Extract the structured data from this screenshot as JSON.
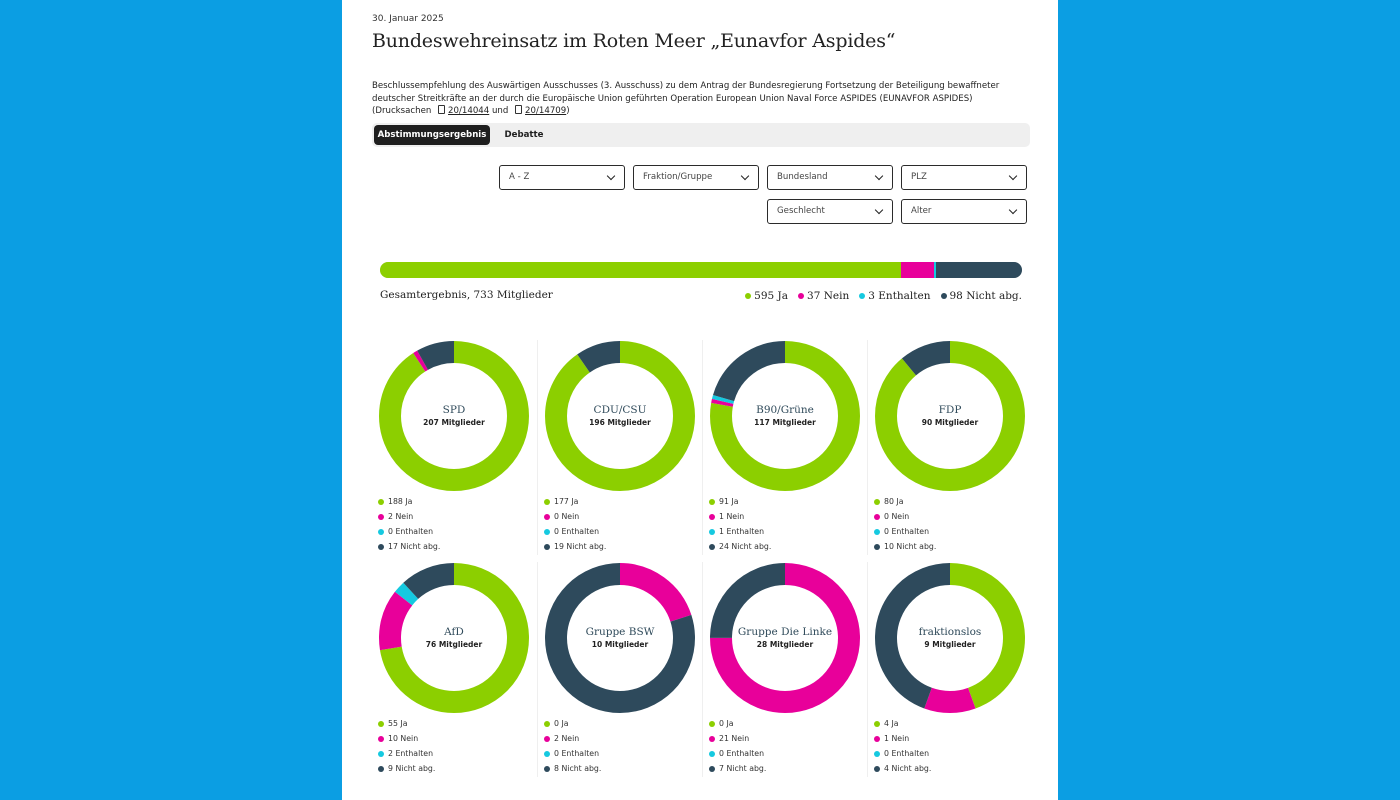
{
  "date": "30. Januar 2025",
  "title": "Bundeswehreinsatz im Roten Meer „Eunavfor Aspides“",
  "description": {
    "text": "Beschlussempfehlung des Auswärtigen Ausschusses (3. Ausschuss) zu dem Antrag der Bundesregierung Fortsetzung der Beteiligung bewaffneter deutscher Streitkräfte an der durch die Europäische Union geführten Operation European Union Naval Force ASPIDES (EUNAVFOR ASPIDES) (Drucksachen",
    "link1": "20/14044",
    "and": "und",
    "link2": "20/14709",
    "close": ")"
  },
  "tabs": [
    {
      "label": "Abstimmungsergebnis",
      "active": true
    },
    {
      "label": "Debatte",
      "active": false
    }
  ],
  "filters": {
    "sort": "A - Z",
    "fraktion": "Fraktion/Gruppe",
    "bundesland": "Bundesland",
    "plz": "PLZ",
    "geschlecht": "Geschlecht",
    "alter": "Alter"
  },
  "colors": {
    "ja": "#8ccf00",
    "nein": "#e8009a",
    "enthalten": "#15c9e0",
    "nicht": "#2e4a5c"
  },
  "total": {
    "label": "Gesamtergebnis, 733 Mitglieder",
    "ja": 595,
    "nein": 37,
    "enthalten": 3,
    "nicht": 98,
    "legend": [
      "595 Ja",
      "37 Nein",
      "3 Enthalten",
      "98 Nicht abg."
    ]
  },
  "chart_data": {
    "type": "pie",
    "categories": [
      "Ja",
      "Nein",
      "Enthalten",
      "Nicht abg."
    ],
    "groups": [
      {
        "name": "SPD",
        "members": "207 Mitglieder",
        "values": [
          188,
          2,
          0,
          17
        ],
        "labels": [
          "188 Ja",
          "2 Nein",
          "0 Enthalten",
          "17 Nicht abg."
        ]
      },
      {
        "name": "CDU/CSU",
        "members": "196 Mitglieder",
        "values": [
          177,
          0,
          0,
          19
        ],
        "labels": [
          "177 Ja",
          "0 Nein",
          "0 Enthalten",
          "19 Nicht abg."
        ]
      },
      {
        "name": "B90/Grüne",
        "members": "117 Mitglieder",
        "values": [
          91,
          1,
          1,
          24
        ],
        "labels": [
          "91 Ja",
          "1 Nein",
          "1 Enthalten",
          "24 Nicht abg."
        ]
      },
      {
        "name": "FDP",
        "members": "90 Mitglieder",
        "values": [
          80,
          0,
          0,
          10
        ],
        "labels": [
          "80 Ja",
          "0 Nein",
          "0 Enthalten",
          "10 Nicht abg."
        ]
      },
      {
        "name": "AfD",
        "members": "76 Mitglieder",
        "values": [
          55,
          10,
          2,
          9
        ],
        "labels": [
          "55 Ja",
          "10 Nein",
          "2 Enthalten",
          "9 Nicht abg."
        ]
      },
      {
        "name": "Gruppe BSW",
        "members": "10 Mitglieder",
        "values": [
          0,
          2,
          0,
          8
        ],
        "labels": [
          "0 Ja",
          "2 Nein",
          "0 Enthalten",
          "8 Nicht abg."
        ]
      },
      {
        "name": "Gruppe Die Linke",
        "members": "28 Mitglieder",
        "values": [
          0,
          21,
          0,
          7
        ],
        "labels": [
          "0 Ja",
          "21 Nein",
          "0 Enthalten",
          "7 Nicht abg."
        ]
      },
      {
        "name": "fraktionslos",
        "members": "9 Mitglieder",
        "values": [
          4,
          1,
          0,
          4
        ],
        "labels": [
          "4 Ja",
          "1 Nein",
          "0 Enthalten",
          "4 Nicht abg."
        ]
      }
    ]
  }
}
